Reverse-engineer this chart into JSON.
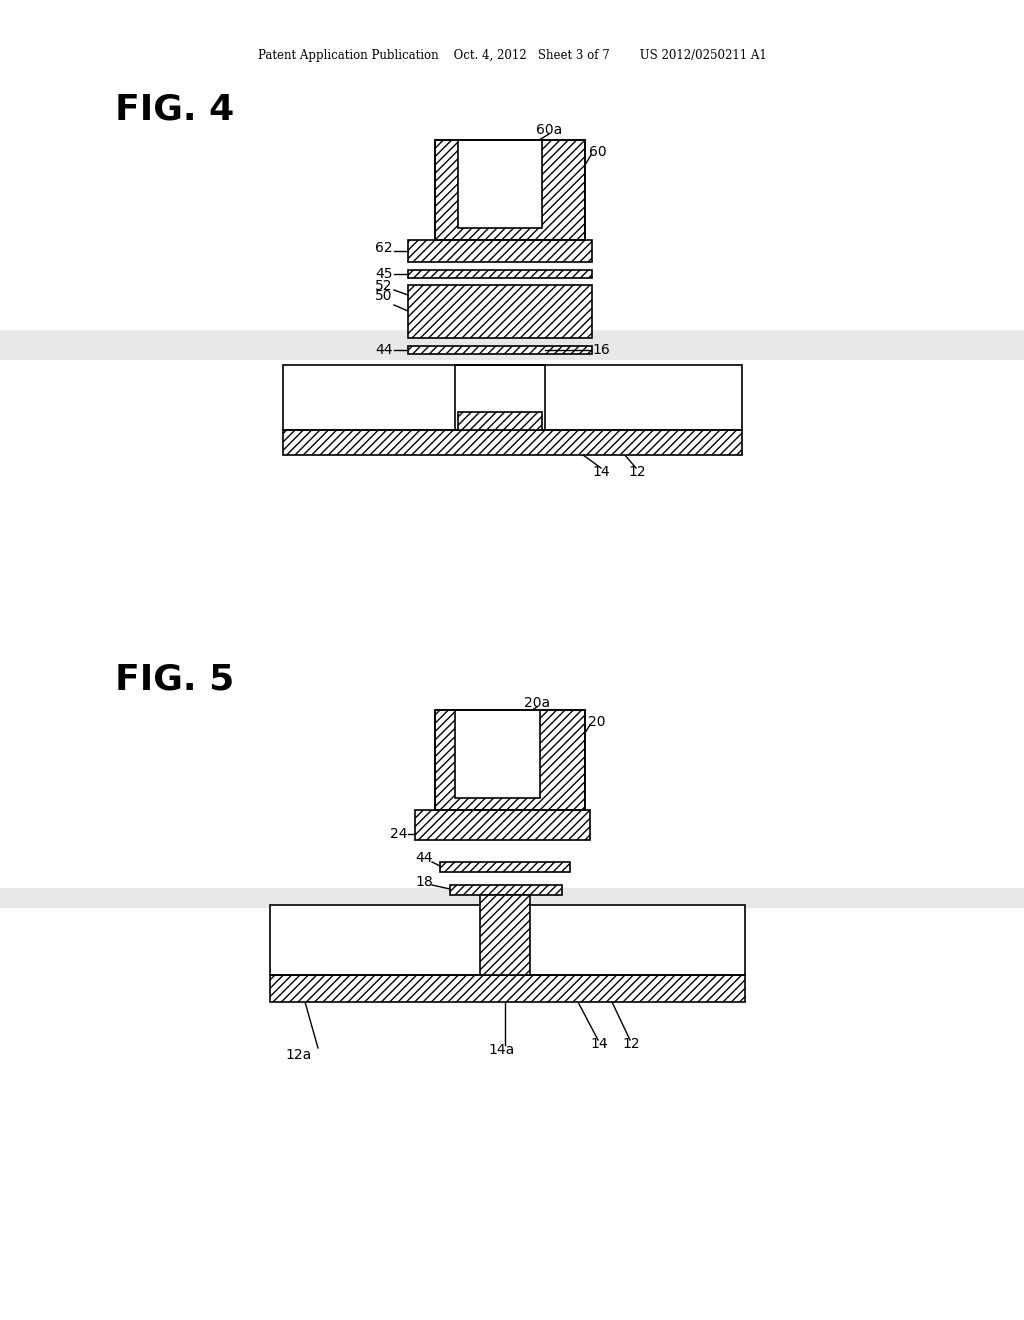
{
  "bg_color": "#ffffff",
  "header_text": "Patent Application Publication    Oct. 4, 2012   Sheet 3 of 7        US 2012/0250211 A1",
  "fig4_label": "FIG. 4",
  "fig5_label": "FIG. 5",
  "hatch_pattern": "////",
  "line_color": "#000000",
  "hatch_color": "#000000",
  "fill_color": "#ffffff"
}
